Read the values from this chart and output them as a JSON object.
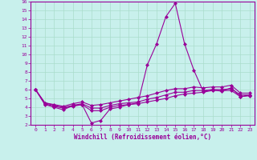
{
  "xlabel": "Windchill (Refroidissement éolien,°C)",
  "background_color": "#c8f0ec",
  "grid_color": "#aaddcc",
  "line_color": "#990099",
  "xlim": [
    -0.5,
    23.5
  ],
  "ylim": [
    2,
    16
  ],
  "xticks": [
    0,
    1,
    2,
    3,
    4,
    5,
    6,
    7,
    8,
    9,
    10,
    11,
    12,
    13,
    14,
    15,
    16,
    17,
    18,
    19,
    20,
    21,
    22,
    23
  ],
  "yticks": [
    2,
    3,
    4,
    5,
    6,
    7,
    8,
    9,
    10,
    11,
    12,
    13,
    14,
    15,
    16
  ],
  "series": [
    [
      6.0,
      4.3,
      4.0,
      3.7,
      4.2,
      4.3,
      2.2,
      2.5,
      3.8,
      4.0,
      4.3,
      4.5,
      8.8,
      11.2,
      14.3,
      15.8,
      11.2,
      8.2,
      5.8,
      6.0,
      5.8,
      6.2,
      5.2,
      5.4
    ],
    [
      6.0,
      4.4,
      4.1,
      3.9,
      4.1,
      4.3,
      3.6,
      3.6,
      4.0,
      4.2,
      4.3,
      4.4,
      4.6,
      4.8,
      5.0,
      5.3,
      5.5,
      5.6,
      5.7,
      5.9,
      5.9,
      5.9,
      5.2,
      5.3
    ],
    [
      6.0,
      4.5,
      4.2,
      4.0,
      4.2,
      4.4,
      3.9,
      3.9,
      4.2,
      4.4,
      4.5,
      4.6,
      4.9,
      5.1,
      5.4,
      5.7,
      5.7,
      5.9,
      5.9,
      6.0,
      6.0,
      6.1,
      5.4,
      5.4
    ],
    [
      6.0,
      4.5,
      4.3,
      4.1,
      4.4,
      4.6,
      4.2,
      4.3,
      4.5,
      4.7,
      4.9,
      5.1,
      5.3,
      5.6,
      5.9,
      6.1,
      6.1,
      6.3,
      6.2,
      6.3,
      6.3,
      6.5,
      5.6,
      5.6
    ]
  ]
}
